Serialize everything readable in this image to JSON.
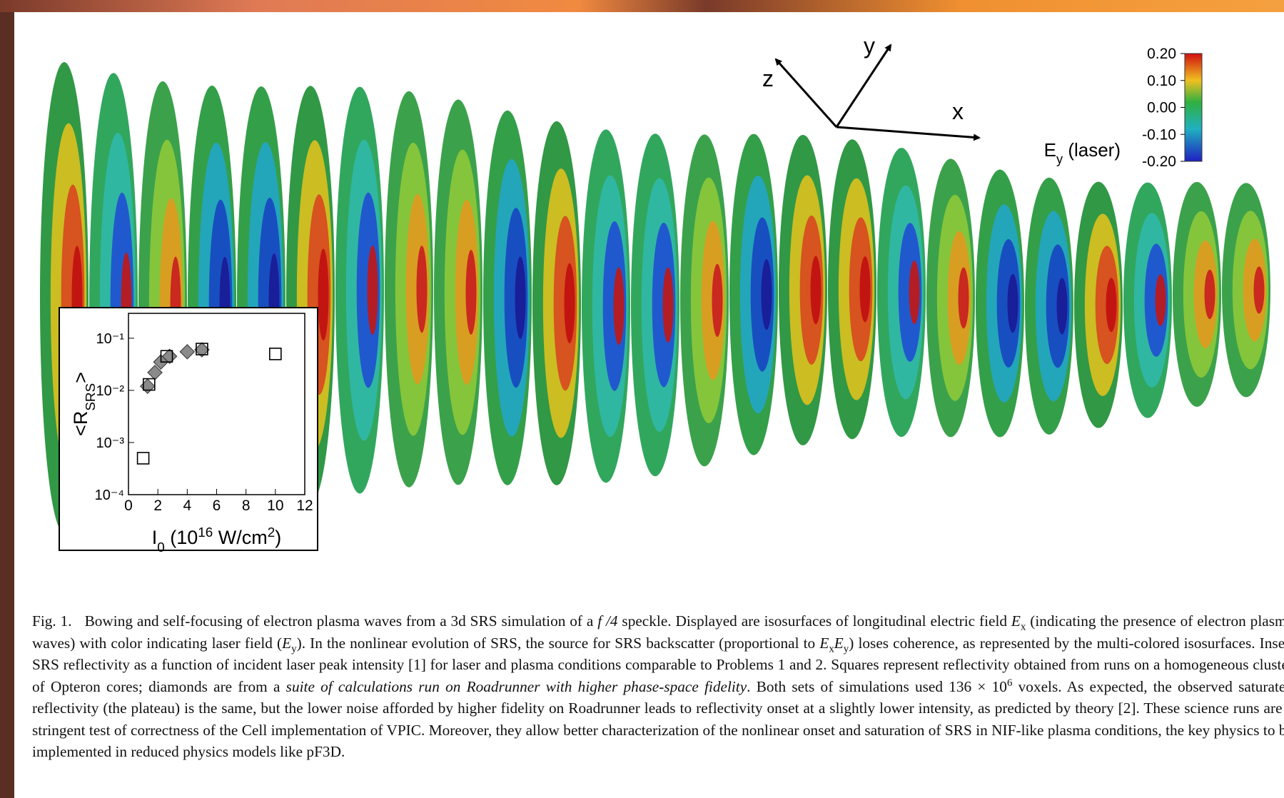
{
  "figure": {
    "axes_labels": [
      "z",
      "y",
      "x"
    ],
    "colorbar": {
      "lim": [
        -0.2,
        0.2
      ],
      "ticks": [
        {
          "value": 0.2,
          "label": "0.20"
        },
        {
          "value": 0.1,
          "label": "0.10"
        },
        {
          "value": 0,
          "label": "0.00"
        },
        {
          "value": -0.1,
          "label": "-0.10"
        },
        {
          "value": -0.2,
          "label": "-0.20"
        }
      ],
      "label": [
        {
          "text": "E"
        },
        {
          "text": "y",
          "style": "sub"
        },
        {
          "text": " (laser)"
        }
      ]
    }
  },
  "chart_data": {
    "type": "scatter",
    "yscale": "log",
    "xlim": [
      0,
      12
    ],
    "xticks": [
      0,
      2,
      4,
      6,
      8,
      10,
      12
    ],
    "ylim": [
      0.0001,
      0.3
    ],
    "yticks": [
      {
        "value": 0.0001,
        "label": "10⁻⁴"
      },
      {
        "value": 0.001,
        "label": "10⁻³"
      },
      {
        "value": 0.01,
        "label": "10⁻²"
      },
      {
        "value": 0.1,
        "label": "10⁻¹"
      }
    ],
    "xlabel": [
      {
        "text": "I"
      },
      {
        "text": "0",
        "style": "sub"
      },
      {
        "text": " (10"
      },
      {
        "text": "16",
        "style": "sup"
      },
      {
        "text": " W/cm"
      },
      {
        "text": "2",
        "style": "sup"
      },
      {
        "text": ")"
      }
    ],
    "ylabel": [
      {
        "text": "<R"
      },
      {
        "text": "SRS",
        "style": "sub"
      },
      {
        "text": ">"
      }
    ],
    "series": [
      {
        "marker": "diamond",
        "color": "#8a8a8a",
        "x": [
          1.3,
          1.8,
          2.2,
          2.8,
          4,
          5
        ],
        "values": [
          0.012,
          0.022,
          0.035,
          0.045,
          0.055,
          0.06
        ]
      },
      {
        "marker": "open-square",
        "color": "#000000",
        "x": [
          1,
          1.4,
          2.6,
          5,
          10
        ],
        "values": [
          0.0005,
          0.013,
          0.045,
          0.062,
          0.05
        ]
      }
    ]
  },
  "caption": {
    "label": "Fig. 1.",
    "runs": [
      {
        "text": "Bowing and self-focusing of electron plasma waves from a 3d SRS simulation of a "
      },
      {
        "text": "f /4",
        "style": "italic"
      },
      {
        "text": " speckle. Displayed are isosurfaces of longitudinal electric field "
      },
      {
        "text": "E",
        "style": "italic"
      },
      {
        "text": "x",
        "style": "sub"
      },
      {
        "text": " (indicating the presence of electron plasma waves) with color indicating laser field ("
      },
      {
        "text": "E",
        "style": "italic"
      },
      {
        "text": "y",
        "style": "sub"
      },
      {
        "text": "). In the nonlinear evolution of SRS, the source for SRS backscatter (proportional to "
      },
      {
        "text": "E",
        "style": "italic"
      },
      {
        "text": "x",
        "style": "sub"
      },
      {
        "text": "E",
        "style": "italic"
      },
      {
        "text": "y",
        "style": "sub"
      },
      {
        "text": ") loses coherence, as represented by the multi-colored isosurfaces. Inset: SRS reflectivity as a function of incident laser peak intensity [1] for laser and plasma conditions comparable to Problems 1 and 2. Squares represent reflectivity obtained from runs on a homogeneous cluster of Opteron cores; diamonds are from a "
      },
      {
        "text": "suite of calculations run on Roadrunner with higher phase-space fidelity",
        "style": "italic"
      },
      {
        "text": ". Both sets of simulations used 136 × 10"
      },
      {
        "text": "6",
        "style": "sup"
      },
      {
        "text": " voxels. As expected, the observed saturated reflectivity (the plateau) is the same, but the lower noise afforded by higher fidelity on Roadrunner leads to reflectivity onset at a slightly lower intensity, as predicted by theory [2]. These science runs are a stringent test of correctness of the Cell implementation of VPIC. Moreover, they allow better characterization of the nonlinear onset and saturation of SRS in NIF-like plasma conditions, the key physics to be implemented in reduced physics models like pF3D."
      }
    ]
  }
}
